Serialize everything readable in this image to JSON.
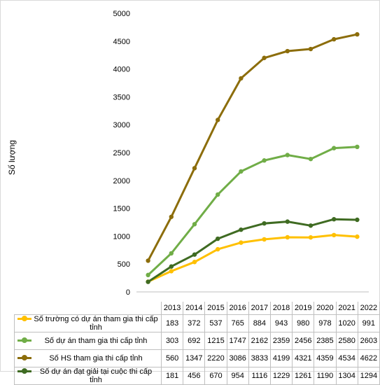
{
  "chart_data": {
    "type": "line",
    "ylabel": "Số lượng",
    "ylim": [
      0,
      5000
    ],
    "yticks": [
      "0",
      "500",
      "1000",
      "1500",
      "2000",
      "2500",
      "3000",
      "3500",
      "4000",
      "4500",
      "5000"
    ],
    "categories": [
      "2013",
      "2014",
      "2015",
      "2016",
      "2017",
      "2018",
      "2019",
      "2020",
      "2021",
      "2022"
    ],
    "grid": false,
    "legend": "data-table",
    "series": [
      {
        "name": "Số trường có dự án tham gia thi cấp tỉnh",
        "color": "#ffc000",
        "values": [
          183,
          372,
          537,
          765,
          884,
          943,
          980,
          978,
          1020,
          991
        ]
      },
      {
        "name": "Số dự án tham gia thi cấp tỉnh",
        "color": "#70ad47",
        "values": [
          303,
          692,
          1215,
          1747,
          2162,
          2359,
          2456,
          2385,
          2580,
          2603
        ]
      },
      {
        "name": "Số HS tham gia thi cấp tỉnh",
        "color": "#8c6d0b",
        "values": [
          560,
          1347,
          2220,
          3086,
          3833,
          4199,
          4321,
          4359,
          4534,
          4622
        ]
      },
      {
        "name": "Số dự án đạt giải tại cuộc thi cấp tỉnh",
        "color": "#3f6b22",
        "values": [
          181,
          456,
          670,
          954,
          1116,
          1229,
          1261,
          1190,
          1304,
          1294
        ]
      }
    ]
  }
}
